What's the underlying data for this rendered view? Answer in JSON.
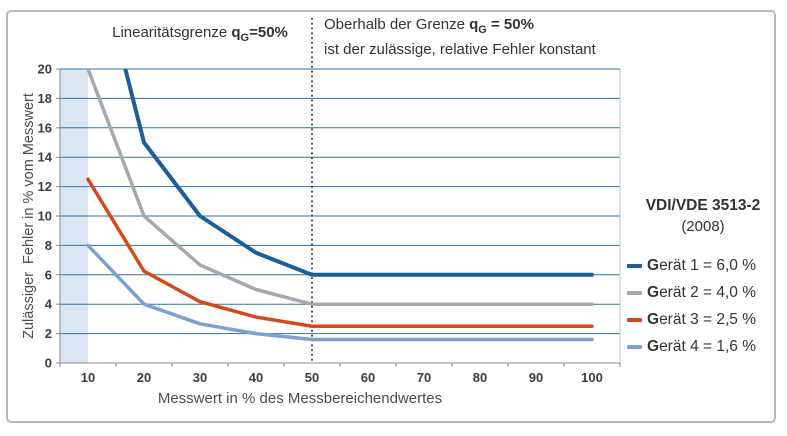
{
  "chart_data": {
    "type": "line",
    "xlabel": "Messwert in % des Messbereichendwertes",
    "ylabel": "Zulässiger  Fehler in % vom Messwert",
    "x": [
      10,
      20,
      30,
      40,
      50,
      60,
      70,
      80,
      90,
      100
    ],
    "ylim": [
      0,
      20
    ],
    "ytick_step": 2,
    "grid": true,
    "gridline_color": "#2b72a8",
    "axis_color": "#8a8a8a",
    "plot_right_border_color": "#c6c6c6",
    "legend_position": "right",
    "legend_title": "VDI/VDE 3513-2",
    "legend_subtitle": "(2008)",
    "series": [
      {
        "name": "Gerät 1 = 6,0 %",
        "color": "#1b5e9b",
        "width": 4,
        "values": [
          30,
          15,
          10,
          7.5,
          6,
          6,
          6,
          6,
          6,
          6
        ]
      },
      {
        "name": "Gerät 2 = 4,0 %",
        "color": "#a8a8ac",
        "width": 3.5,
        "values": [
          20,
          10,
          6.667,
          5,
          4,
          4,
          4,
          4,
          4,
          4
        ]
      },
      {
        "name": "Gerät 3 = 2,5 %",
        "color": "#d14a1e",
        "width": 3.5,
        "values": [
          12.5,
          6.25,
          4.167,
          3.125,
          2.5,
          2.5,
          2.5,
          2.5,
          2.5,
          2.5
        ]
      },
      {
        "name": "Gerät 4 = 1,6 %",
        "color": "#7ca0d2",
        "width": 3.5,
        "values": [
          8,
          4,
          2.667,
          2,
          1.6,
          1.6,
          1.6,
          1.6,
          1.6,
          1.6
        ]
      }
    ],
    "annotations": {
      "left_title_parts": {
        "prefix": "Linearitätsgrenze ",
        "q": "q",
        "qsub": "G",
        "qval": "=50%"
      },
      "right_title_parts": {
        "prefix": "Oberhalb der Grenze ",
        "q": "q",
        "qsub": "G",
        "qval": " = 50%",
        "line2": "ist der zulässige, relative Fehler konstant"
      },
      "vertical_dotted_line": {
        "x": 50,
        "color": "#2e2e2e"
      },
      "shaded_region": {
        "x_end": 10,
        "fill": "#dce6f2"
      }
    }
  }
}
